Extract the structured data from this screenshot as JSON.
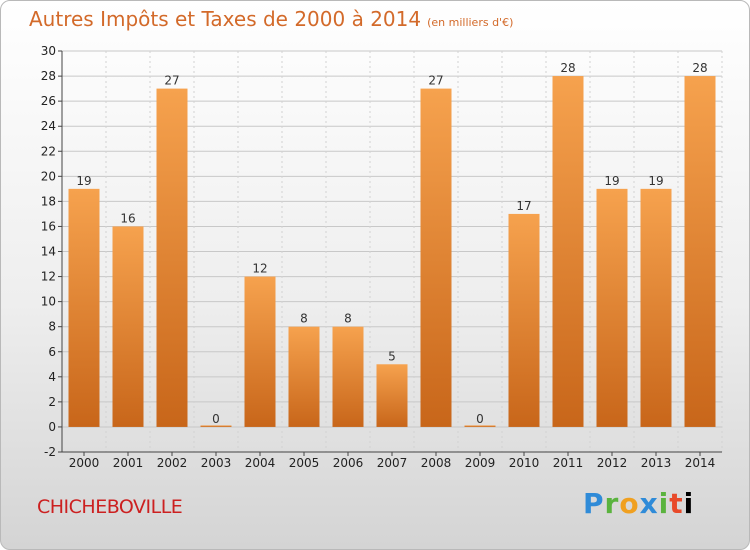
{
  "header": {
    "title": "Autres Impôts et Taxes de 2000 à 2014",
    "unit": "(en milliers d'€)"
  },
  "footer": {
    "town": "CHICHEBOVILLE",
    "brand": [
      "P",
      "r",
      "o",
      "x",
      "i",
      "t",
      "i"
    ]
  },
  "colors": {
    "bar_light": "#f6a24e",
    "bar_dark": "#c8661a",
    "title": "#d36a2a",
    "town": "#cc2020"
  },
  "chart_data": {
    "type": "bar",
    "title": "Autres Impôts et Taxes de 2000 à 2014",
    "subtitle": "(en milliers d'€)",
    "categories": [
      "2000",
      "2001",
      "2002",
      "2003",
      "2004",
      "2005",
      "2006",
      "2007",
      "2008",
      "2009",
      "2010",
      "2011",
      "2012",
      "2013",
      "2014"
    ],
    "values": [
      19,
      16,
      27,
      0,
      12,
      8,
      8,
      5,
      27,
      0,
      17,
      28,
      19,
      19,
      28
    ],
    "ylim": [
      -2,
      30
    ],
    "yticks": [
      -2,
      0,
      2,
      4,
      6,
      8,
      10,
      12,
      14,
      16,
      18,
      20,
      22,
      24,
      26,
      28,
      30
    ],
    "grid": true,
    "legend": "none"
  }
}
